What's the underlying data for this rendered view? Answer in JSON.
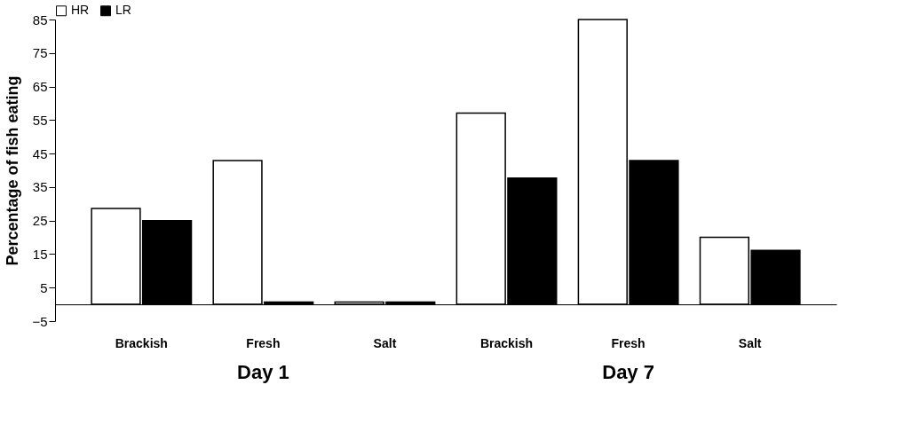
{
  "chart_data": {
    "type": "bar",
    "ylabel": "Percentage of fish eating",
    "categories": [
      "Brackish",
      "Fresh",
      "Salt",
      "Brackish",
      "Fresh",
      "Salt"
    ],
    "series": [
      {
        "name": "HR",
        "color": "#ffffff",
        "values": [
          28.6,
          42.9,
          0.7,
          57.1,
          85.0,
          20.0
        ]
      },
      {
        "name": "LR",
        "color": "#000000",
        "values": [
          25.0,
          0.7,
          0.7,
          37.7,
          42.9,
          16.1
        ]
      }
    ],
    "annotations": [
      "Day 1",
      "Day 7"
    ],
    "ylim": [
      -5,
      85
    ],
    "yticks": [
      -5,
      5,
      15,
      25,
      35,
      45,
      55,
      65,
      75,
      85
    ],
    "grid": false,
    "legend": "top"
  }
}
